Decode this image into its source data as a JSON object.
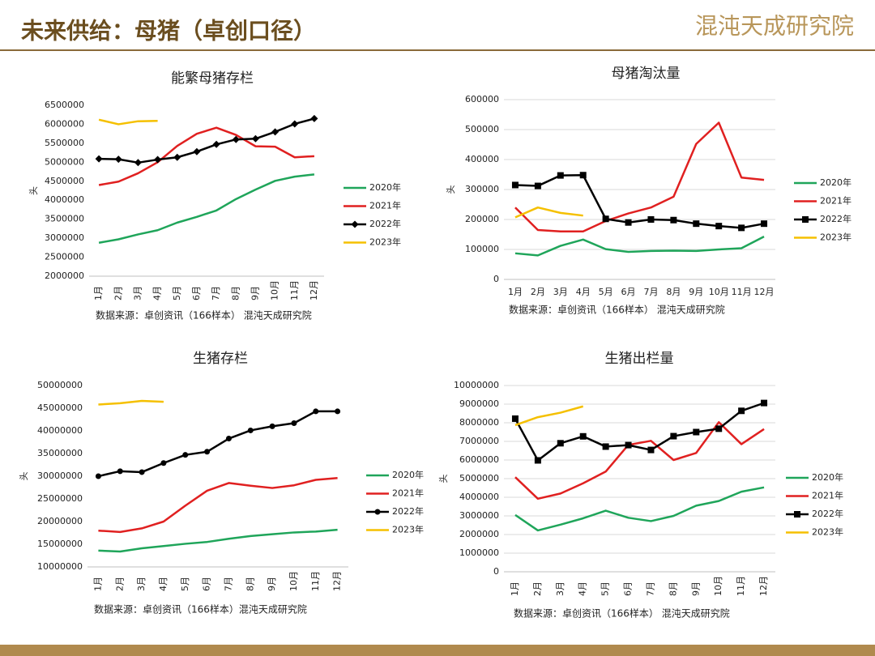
{
  "header": {
    "title": "未来供给：母猪（卓创口径）",
    "logo": "混沌天成研究院"
  },
  "chart_data": [
    {
      "type": "line",
      "title": "能繁母猪存栏",
      "ylabel": "头",
      "source": "数据来源：卓创资讯（166样本） 混沌天成研究院",
      "categories": [
        "1月",
        "2月",
        "3月",
        "4月",
        "5月",
        "6月",
        "7月",
        "8月",
        "9月",
        "10月",
        "11月",
        "12月"
      ],
      "ylim": [
        2000000,
        6500000
      ],
      "yticks": [
        2000000,
        2500000,
        3000000,
        3500000,
        4000000,
        4500000,
        5000000,
        5500000,
        6000000,
        6500000
      ],
      "grid": false,
      "legend": "right",
      "series": [
        {
          "name": "2020年",
          "color": "#1fa55a",
          "values": [
            2880000,
            2970000,
            3100000,
            3210000,
            3410000,
            3560000,
            3730000,
            4030000,
            4280000,
            4510000,
            4620000,
            4680000
          ]
        },
        {
          "name": "2021年",
          "color": "#e02020",
          "values": [
            4400000,
            4490000,
            4710000,
            5000000,
            5430000,
            5750000,
            5910000,
            5720000,
            5420000,
            5410000,
            5130000,
            5160000
          ]
        },
        {
          "name": "2022年",
          "color": "#000000",
          "marker": "diamond",
          "values": [
            5090000,
            5080000,
            4990000,
            5070000,
            5130000,
            5280000,
            5470000,
            5600000,
            5620000,
            5800000,
            6010000,
            6150000
          ]
        },
        {
          "name": "2023年",
          "color": "#f5c000",
          "values": [
            6120000,
            6000000,
            6080000,
            6090000,
            null,
            null,
            null,
            null,
            null,
            null,
            null,
            null
          ]
        }
      ]
    },
    {
      "type": "line",
      "title": "母猪淘汰量",
      "ylabel": "头",
      "source": "数据来源：卓创资讯（166样本） 混沌天成研究院",
      "categories": [
        "1月",
        "2月",
        "3月",
        "4月",
        "5月",
        "6月",
        "7月",
        "8月",
        "9月",
        "10月",
        "11月",
        "12月"
      ],
      "ylim": [
        0,
        600000
      ],
      "yticks": [
        0,
        100000,
        200000,
        300000,
        400000,
        500000,
        600000
      ],
      "grid": true,
      "legend": "right",
      "series": [
        {
          "name": "2020年",
          "color": "#1fa55a",
          "values": [
            87000,
            80000,
            112000,
            133000,
            101000,
            92000,
            95000,
            96000,
            95000,
            100000,
            104000,
            143000
          ]
        },
        {
          "name": "2021年",
          "color": "#e02020",
          "values": [
            240000,
            165000,
            160000,
            160000,
            195000,
            220000,
            240000,
            276000,
            452000,
            523000,
            340000,
            332000
          ]
        },
        {
          "name": "2022年",
          "color": "#000000",
          "marker": "square",
          "values": [
            315000,
            312000,
            347000,
            348000,
            202000,
            190000,
            200000,
            198000,
            186000,
            178000,
            172000,
            186000
          ]
        },
        {
          "name": "2023年",
          "color": "#f5c000",
          "values": [
            207000,
            240000,
            222000,
            213000,
            null,
            null,
            null,
            null,
            null,
            null,
            null,
            null
          ]
        }
      ]
    },
    {
      "type": "line",
      "title": "生猪存栏",
      "ylabel": "头",
      "source": "数据来源：卓创资讯（166样本）混沌天成研究院",
      "categories": [
        "1月",
        "2月",
        "3月",
        "4月",
        "5月",
        "6月",
        "7月",
        "8月",
        "9月",
        "10月",
        "11月",
        "12月"
      ],
      "ylim": [
        10000000,
        50000000
      ],
      "yticks": [
        10000000,
        15000000,
        20000000,
        25000000,
        30000000,
        35000000,
        40000000,
        45000000,
        50000000
      ],
      "grid": false,
      "legend": "right",
      "series": [
        {
          "name": "2020年",
          "color": "#1fa55a",
          "values": [
            13600000,
            13400000,
            14100000,
            14600000,
            15100000,
            15500000,
            16200000,
            16800000,
            17200000,
            17600000,
            17800000,
            18200000
          ]
        },
        {
          "name": "2021年",
          "color": "#e02020",
          "values": [
            18000000,
            17700000,
            18500000,
            20000000,
            23500000,
            26800000,
            28500000,
            27900000,
            27400000,
            28000000,
            29200000,
            29600000
          ]
        },
        {
          "name": "2022年",
          "color": "#000000",
          "marker": "circle",
          "values": [
            30000000,
            31100000,
            30900000,
            32900000,
            34700000,
            35400000,
            38300000,
            40100000,
            41000000,
            41700000,
            44300000,
            44300000
          ]
        },
        {
          "name": "2023年",
          "color": "#f5c000",
          "values": [
            45800000,
            46100000,
            46600000,
            46400000,
            null,
            null,
            null,
            null,
            null,
            null,
            null,
            null
          ]
        }
      ]
    },
    {
      "type": "line",
      "title": "生猪出栏量",
      "ylabel": "头",
      "source": "数据来源：卓创资讯（166样本） 混沌天成研究院",
      "categories": [
        "1月",
        "2月",
        "3月",
        "4月",
        "5月",
        "6月",
        "7月",
        "8月",
        "9月",
        "10月",
        "11月",
        "12月"
      ],
      "ylim": [
        0,
        10000000
      ],
      "yticks": [
        0,
        1000000,
        2000000,
        3000000,
        4000000,
        5000000,
        6000000,
        7000000,
        8000000,
        9000000,
        10000000
      ],
      "grid": true,
      "legend": "right",
      "series": [
        {
          "name": "2020年",
          "color": "#1fa55a",
          "values": [
            3050000,
            2220000,
            2530000,
            2870000,
            3280000,
            2900000,
            2720000,
            3000000,
            3550000,
            3800000,
            4300000,
            4530000
          ]
        },
        {
          "name": "2021年",
          "color": "#e02020",
          "values": [
            5080000,
            3920000,
            4200000,
            4750000,
            5380000,
            6810000,
            7030000,
            6000000,
            6380000,
            8030000,
            6850000,
            7660000
          ]
        },
        {
          "name": "2022年",
          "color": "#000000",
          "marker": "square",
          "values": [
            8220000,
            5980000,
            6900000,
            7270000,
            6720000,
            6800000,
            6540000,
            7280000,
            7500000,
            7680000,
            8640000,
            9060000
          ]
        },
        {
          "name": "2023年",
          "color": "#f5c000",
          "values": [
            7870000,
            8300000,
            8540000,
            8880000,
            null,
            null,
            null,
            null,
            null,
            null,
            null,
            null
          ]
        }
      ]
    }
  ]
}
